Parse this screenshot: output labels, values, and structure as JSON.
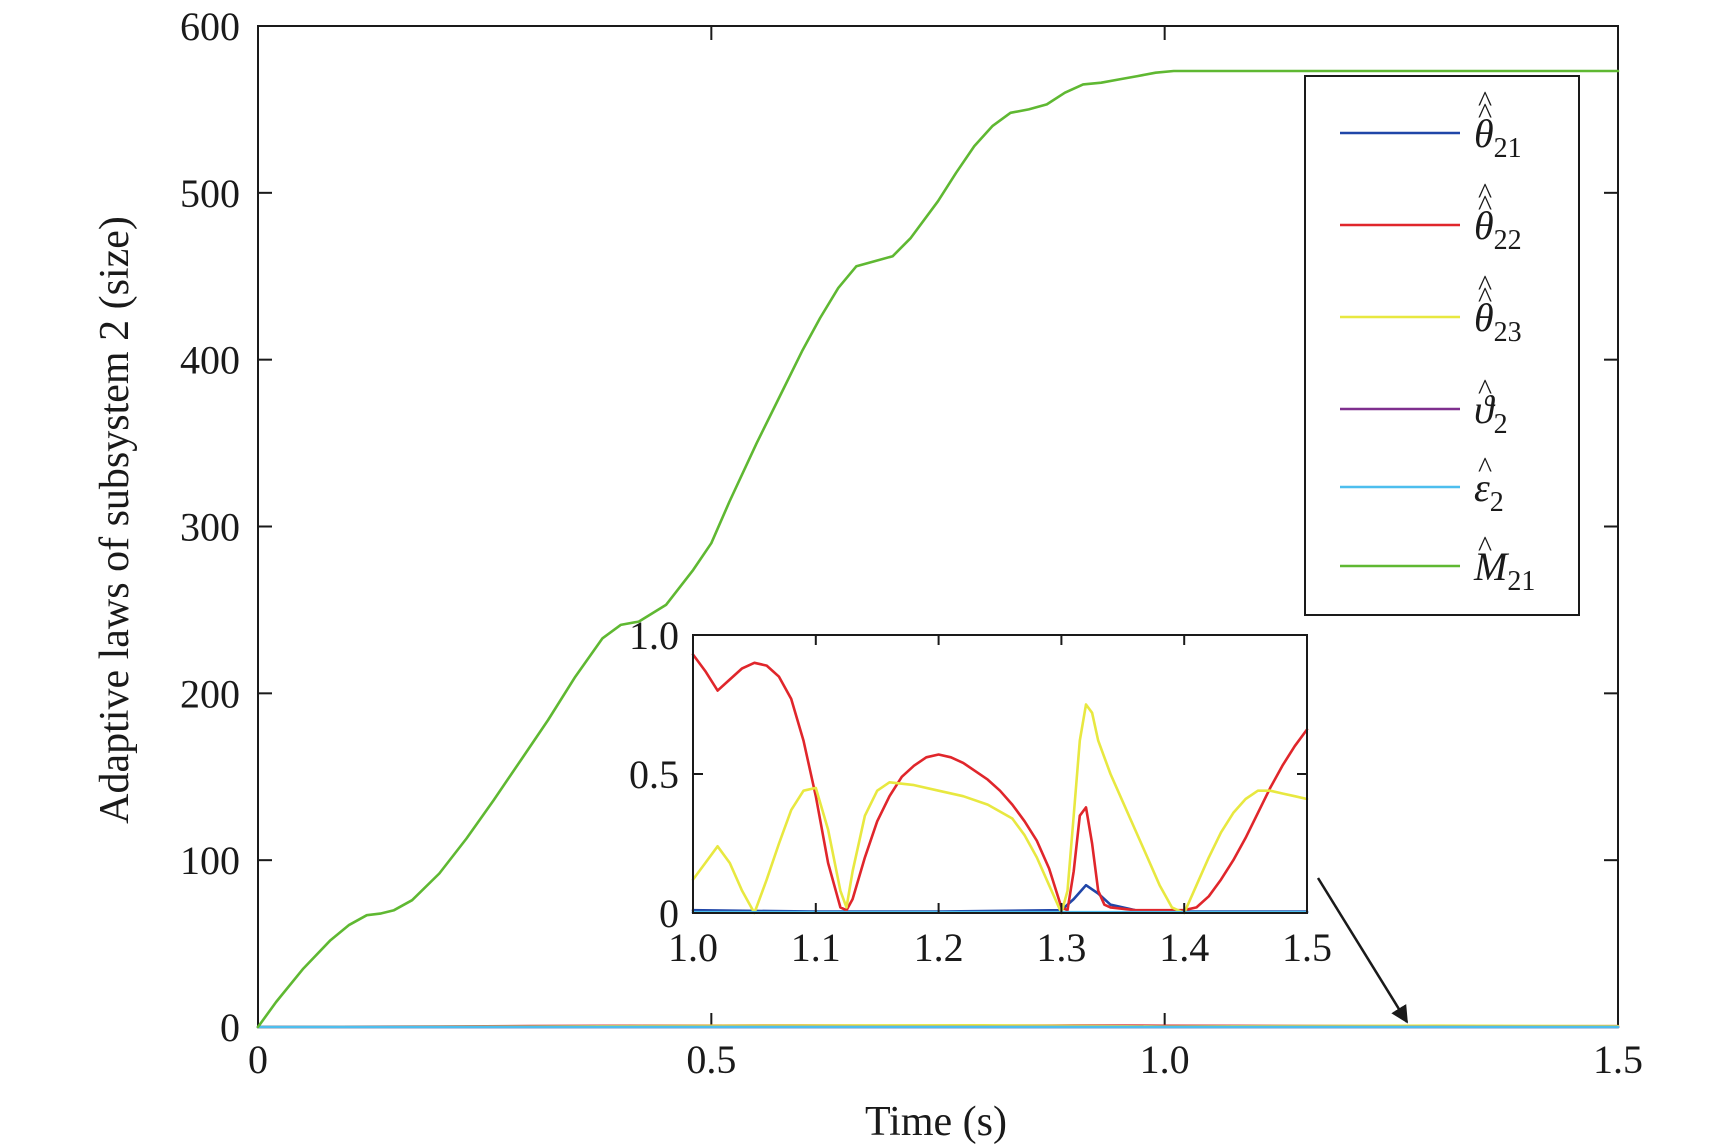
{
  "chart_data": [
    {
      "type": "line",
      "xlabel": "Time (s)",
      "ylabel": "Adaptive laws of subsystem 2 (size)",
      "xlim": [
        0,
        1.5
      ],
      "ylim": [
        0,
        600
      ],
      "x_ticks": [
        0,
        0.5,
        1.0,
        1.5
      ],
      "x_tick_labels": [
        "0",
        "0.5",
        "1.0",
        "1.5"
      ],
      "y_ticks": [
        0,
        100,
        200,
        300,
        400,
        500,
        600
      ],
      "y_tick_labels": [
        "0",
        "100",
        "200",
        "300",
        "400",
        "500",
        "600"
      ],
      "legend_position": "top-right",
      "series": [
        {
          "name": "θ21",
          "label_sym": "θ",
          "label_sub": "21",
          "label_hat": "double",
          "color": "#2046a8",
          "x": [
            0,
            0.25,
            0.5,
            0.75,
            1.0,
            1.25,
            1.5
          ],
          "y": [
            0,
            0,
            0,
            0,
            0,
            0,
            0
          ]
        },
        {
          "name": "θ22",
          "label_sym": "θ",
          "label_sub": "22",
          "label_hat": "double",
          "color": "#e0262b",
          "x": [
            0,
            0.2,
            0.3,
            0.5,
            0.6,
            0.75,
            0.9,
            1.0,
            1.2,
            1.35,
            1.5
          ],
          "y": [
            0,
            0.3,
            0.6,
            0.8,
            0.9,
            0.6,
            0.9,
            0.7,
            0.6,
            0.4,
            0.5
          ]
        },
        {
          "name": "θ23",
          "label_sym": "θ",
          "label_sub": "23",
          "label_hat": "double",
          "color": "#e8e840",
          "x": [
            0,
            0.3,
            0.55,
            0.8,
            1.0,
            1.3,
            1.5
          ],
          "y": [
            0,
            0.3,
            0.8,
            1.0,
            0.3,
            0.8,
            0.5
          ]
        },
        {
          "name": "ϑ2",
          "label_sym": "ϑ",
          "label_sub": "2",
          "label_hat": "single",
          "color": "#7e2f8e",
          "x": [
            0,
            1.5
          ],
          "y": [
            0,
            0
          ]
        },
        {
          "name": "ε2",
          "label_sym": "ε",
          "label_sub": "2",
          "label_hat": "single",
          "color": "#4dbeee",
          "x": [
            0,
            1.5
          ],
          "y": [
            0,
            0
          ]
        },
        {
          "name": "M21",
          "label_sym": "M",
          "label_sub": "21",
          "label_hat": "single",
          "color": "#5fb832",
          "x": [
            0,
            0.02,
            0.05,
            0.08,
            0.1,
            0.12,
            0.135,
            0.15,
            0.17,
            0.2,
            0.23,
            0.26,
            0.29,
            0.32,
            0.35,
            0.38,
            0.4,
            0.42,
            0.45,
            0.48,
            0.5,
            0.52,
            0.55,
            0.58,
            0.6,
            0.62,
            0.64,
            0.66,
            0.68,
            0.7,
            0.72,
            0.75,
            0.77,
            0.79,
            0.81,
            0.83,
            0.85,
            0.87,
            0.89,
            0.91,
            0.93,
            0.95,
            0.97,
            0.99,
            1.01,
            1.1,
            1.2,
            1.3,
            1.4,
            1.5
          ],
          "y": [
            0,
            15,
            35,
            52,
            61,
            67,
            68,
            70,
            76,
            92,
            113,
            136,
            160,
            184,
            210,
            233,
            241,
            243,
            253,
            274,
            290,
            315,
            350,
            383,
            405,
            425,
            443,
            456,
            459,
            462,
            473,
            495,
            512,
            528,
            540,
            548,
            550,
            553,
            560,
            565,
            566,
            568,
            570,
            572,
            573,
            573,
            573,
            573,
            573,
            573
          ]
        }
      ]
    },
    {
      "type": "line",
      "inset": true,
      "xlim": [
        1.0,
        1.5
      ],
      "ylim": [
        0,
        1.0
      ],
      "x_ticks": [
        1.0,
        1.1,
        1.2,
        1.3,
        1.4,
        1.5
      ],
      "x_tick_labels": [
        "1.0",
        "1.1",
        "1.2",
        "1.3",
        "1.4",
        "1.5"
      ],
      "y_ticks": [
        0,
        0.5,
        1.0
      ],
      "y_tick_labels": [
        "0",
        "0.5",
        "1.0"
      ],
      "series": [
        {
          "name": "θ21",
          "color": "#2046a8",
          "x": [
            1.0,
            1.1,
            1.2,
            1.3,
            1.31,
            1.32,
            1.33,
            1.34,
            1.36,
            1.4,
            1.5
          ],
          "y": [
            0.01,
            0.005,
            0.005,
            0.01,
            0.05,
            0.1,
            0.07,
            0.03,
            0.01,
            0.005,
            0.005
          ]
        },
        {
          "name": "θ22",
          "color": "#e0262b",
          "x": [
            1.0,
            1.01,
            1.02,
            1.03,
            1.04,
            1.05,
            1.06,
            1.07,
            1.08,
            1.09,
            1.1,
            1.11,
            1.12,
            1.125,
            1.13,
            1.14,
            1.15,
            1.16,
            1.17,
            1.18,
            1.19,
            1.2,
            1.21,
            1.22,
            1.23,
            1.24,
            1.25,
            1.26,
            1.27,
            1.28,
            1.29,
            1.3,
            1.305,
            1.31,
            1.315,
            1.32,
            1.325,
            1.33,
            1.335,
            1.34,
            1.35,
            1.36,
            1.37,
            1.38,
            1.39,
            1.4,
            1.41,
            1.42,
            1.43,
            1.44,
            1.45,
            1.46,
            1.47,
            1.48,
            1.49,
            1.5
          ],
          "y": [
            0.93,
            0.87,
            0.8,
            0.84,
            0.88,
            0.9,
            0.89,
            0.85,
            0.77,
            0.62,
            0.42,
            0.18,
            0.02,
            0.01,
            0.05,
            0.2,
            0.33,
            0.42,
            0.49,
            0.53,
            0.56,
            0.57,
            0.56,
            0.54,
            0.51,
            0.48,
            0.44,
            0.39,
            0.33,
            0.26,
            0.16,
            0.02,
            0.01,
            0.15,
            0.35,
            0.38,
            0.25,
            0.08,
            0.03,
            0.02,
            0.015,
            0.01,
            0.01,
            0.01,
            0.01,
            0.01,
            0.02,
            0.06,
            0.12,
            0.19,
            0.27,
            0.36,
            0.45,
            0.53,
            0.6,
            0.66
          ]
        },
        {
          "name": "θ23",
          "color": "#e8e840",
          "x": [
            1.0,
            1.01,
            1.02,
            1.03,
            1.04,
            1.05,
            1.06,
            1.07,
            1.08,
            1.09,
            1.1,
            1.11,
            1.12,
            1.125,
            1.13,
            1.14,
            1.15,
            1.16,
            1.18,
            1.2,
            1.22,
            1.24,
            1.26,
            1.27,
            1.28,
            1.29,
            1.3,
            1.305,
            1.31,
            1.315,
            1.32,
            1.325,
            1.33,
            1.34,
            1.35,
            1.36,
            1.37,
            1.38,
            1.39,
            1.4,
            1.41,
            1.42,
            1.43,
            1.44,
            1.45,
            1.46,
            1.47,
            1.48,
            1.49,
            1.5
          ],
          "y": [
            0.12,
            0.18,
            0.24,
            0.18,
            0.08,
            0.0,
            0.12,
            0.25,
            0.37,
            0.44,
            0.45,
            0.3,
            0.08,
            0.02,
            0.15,
            0.35,
            0.44,
            0.47,
            0.46,
            0.44,
            0.42,
            0.39,
            0.34,
            0.28,
            0.2,
            0.1,
            0.0,
            0.08,
            0.35,
            0.62,
            0.75,
            0.72,
            0.62,
            0.5,
            0.4,
            0.3,
            0.2,
            0.1,
            0.02,
            0.0,
            0.1,
            0.2,
            0.29,
            0.36,
            0.41,
            0.44,
            0.44,
            0.43,
            0.42,
            0.41
          ]
        },
        {
          "name": "ϑ2",
          "color": "#7e2f8e",
          "x": [
            1.0,
            1.5
          ],
          "y": [
            0.002,
            0.002
          ]
        },
        {
          "name": "ε2",
          "color": "#4dbeee",
          "x": [
            1.0,
            1.5
          ],
          "y": [
            0.003,
            0.003
          ]
        }
      ]
    }
  ]
}
